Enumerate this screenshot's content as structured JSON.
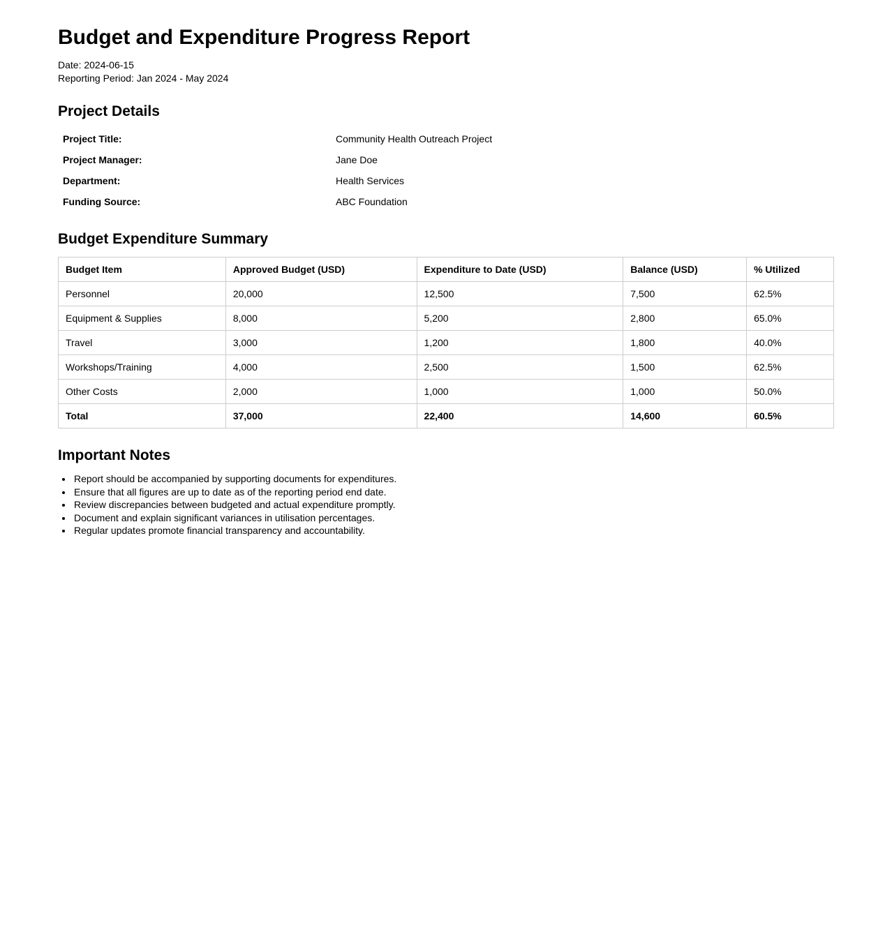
{
  "report": {
    "title": "Budget and Expenditure Progress Report",
    "date_line": "Date: 2024-06-15",
    "period_line": "Reporting Period: Jan 2024 - May 2024"
  },
  "project_details": {
    "heading": "Project Details",
    "rows": [
      {
        "label": "Project Title:",
        "value": "Community Health Outreach Project"
      },
      {
        "label": "Project Manager:",
        "value": "Jane Doe"
      },
      {
        "label": "Department:",
        "value": "Health Services"
      },
      {
        "label": "Funding Source:",
        "value": "ABC Foundation"
      }
    ]
  },
  "budget_summary": {
    "heading": "Budget Expenditure Summary",
    "columns": [
      "Budget Item",
      "Approved Budget (USD)",
      "Expenditure to Date (USD)",
      "Balance (USD)",
      "% Utilized"
    ],
    "rows": [
      [
        "Personnel",
        "20,000",
        "12,500",
        "7,500",
        "62.5%"
      ],
      [
        "Equipment & Supplies",
        "8,000",
        "5,200",
        "2,800",
        "65.0%"
      ],
      [
        "Travel",
        "3,000",
        "1,200",
        "1,800",
        "40.0%"
      ],
      [
        "Workshops/Training",
        "4,000",
        "2,500",
        "1,500",
        "62.5%"
      ],
      [
        "Other Costs",
        "2,000",
        "1,000",
        "1,000",
        "50.0%"
      ]
    ],
    "total_row": [
      "Total",
      "37,000",
      "22,400",
      "14,600",
      "60.5%"
    ]
  },
  "notes": {
    "heading": "Important Notes",
    "items": [
      "Report should be accompanied by supporting documents for expenditures.",
      "Ensure that all figures are up to date as of the reporting period end date.",
      "Review discrepancies between budgeted and actual expenditure promptly.",
      "Document and explain significant variances in utilisation percentages.",
      "Regular updates promote financial transparency and accountability."
    ]
  },
  "colors": {
    "table_border": "#cccccc",
    "text": "#000000",
    "background": "#ffffff"
  }
}
